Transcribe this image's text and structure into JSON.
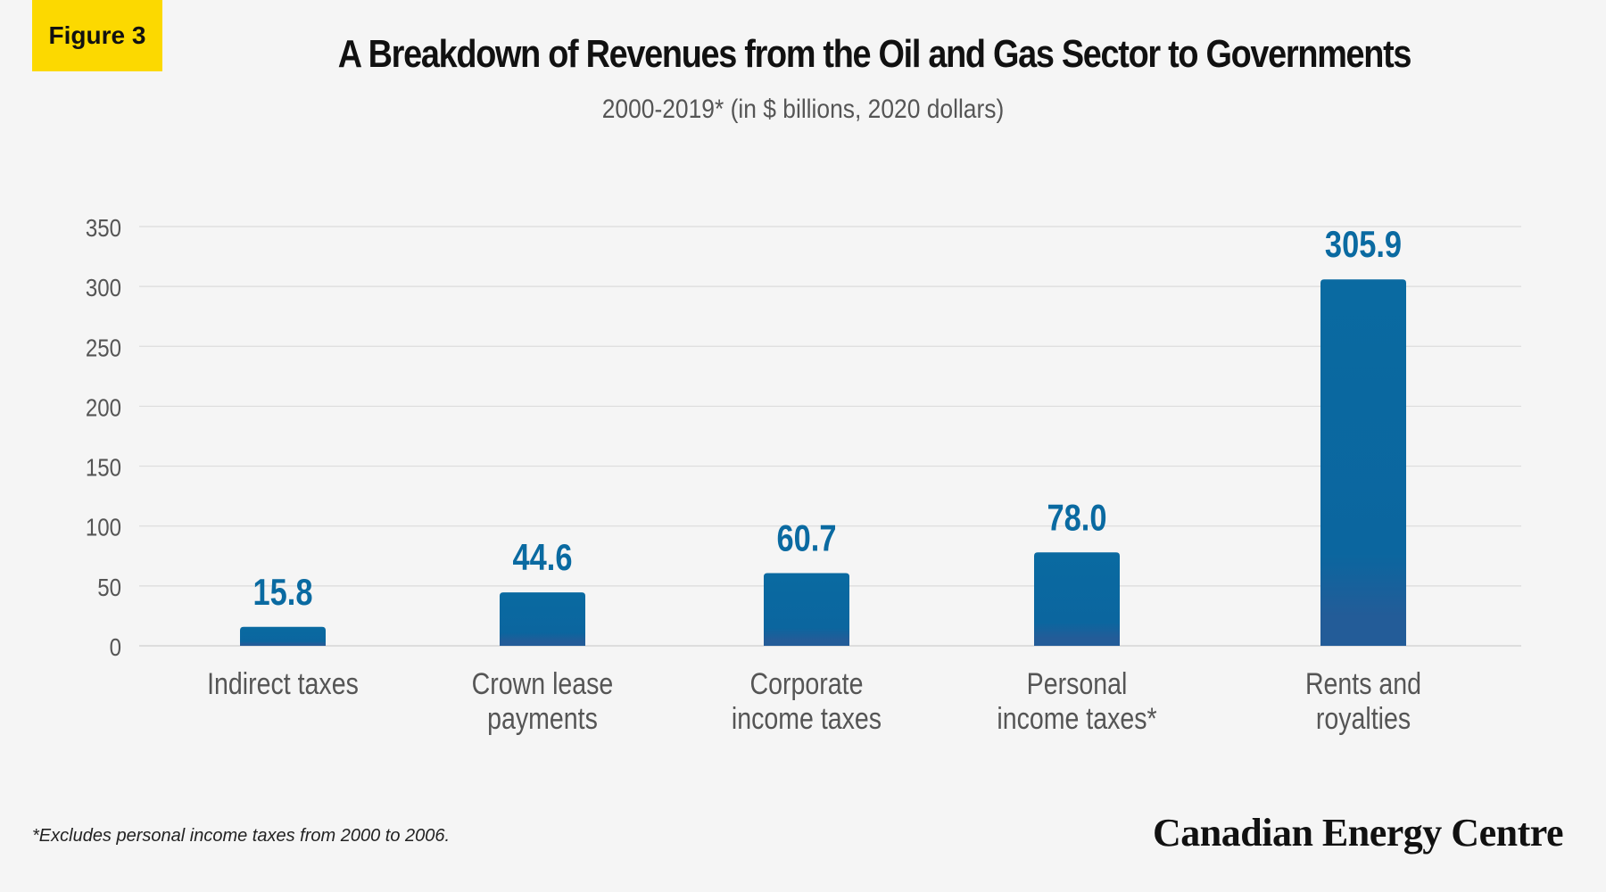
{
  "badge": "Figure 3",
  "title": "A Breakdown of Revenues from the Oil and Gas Sector to Governments",
  "subtitle": "2000-2019* (in $ billions, 2020 dollars)",
  "footnote": "*Excludes personal income taxes from 2000 to 2006.",
  "brand": "Canadian Energy Centre",
  "colors": {
    "bar_top": "#0a6aa1",
    "bar_bottom": "#235c98",
    "label": "#0a6aa1",
    "badge": "#fcd900"
  },
  "chart_data": {
    "type": "bar",
    "categories": [
      [
        "Indirect taxes"
      ],
      [
        "Crown lease",
        "payments"
      ],
      [
        "Corporate",
        "income taxes"
      ],
      [
        "Personal",
        "income taxes*"
      ],
      [
        "Rents and",
        "royalties"
      ]
    ],
    "values": [
      15.8,
      44.6,
      60.7,
      78.0,
      305.9
    ],
    "value_labels": [
      "15.8",
      "44.6",
      "60.7",
      "78.0",
      "305.9"
    ],
    "y_ticks": [
      "0",
      "50",
      "100",
      "150",
      "200",
      "250",
      "300",
      "350"
    ],
    "ylim": [
      0,
      350
    ],
    "grid": true,
    "legend": "none"
  }
}
